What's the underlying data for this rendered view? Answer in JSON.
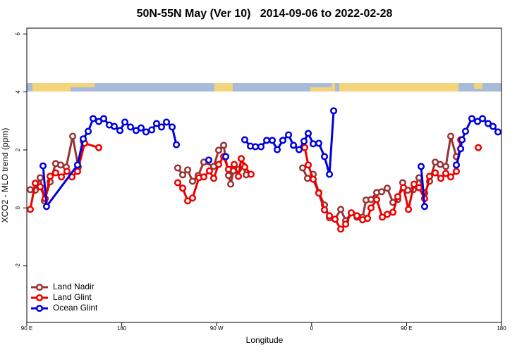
{
  "chart_data": {
    "type": "line",
    "title": "50N-55N May (Ver 10)   2014-09-06 to 2022-02-28",
    "x_label": "Longitude",
    "y_label": "XCO2 - MLO trend (ppm)",
    "xlim": [
      90,
      540
    ],
    "ylim": [
      -3.95,
      6.2
    ],
    "xticks": [
      {
        "value": 90,
        "label": "90 E"
      },
      180,
      {
        "value": 270,
        "label": "90 W"
      },
      {
        "value": 360,
        "label": "0"
      },
      {
        "value": 450,
        "label": "90 E"
      },
      {
        "value": 540,
        "label": "180"
      }
    ],
    "yticks": [
      -2,
      0,
      2,
      4,
      6
    ],
    "legend": "bottom-left",
    "series": [
      {
        "name": "Land Nadir",
        "color": "#993333",
        "x": [
          93.3,
          98.0,
          102.7,
          106.7,
          112.1,
          117.4,
          122.1,
          127.4,
          133.5,
          138.8,
          143.5,
          null,
          233.1,
          237.8,
          242.5,
          247.1,
          252.5,
          257.8,
          267.2,
          271.9,
          276.6,
          281.2,
          283.3,
          285.9,
          290.6,
          294.6,
          298.0,
          null,
          351.5,
          356.1,
          361.5,
          366.8,
          372.2,
          376.9,
          382.2,
          387.6,
          392.3,
          397.6,
          403.0,
          408.3,
          411.6,
          416.3,
          421.7,
          426.4,
          431.7,
          437.1,
          441.7,
          446.4,
          451.1,
          456.4,
          461.8,
          467.1,
          471.8,
          477.2,
          481.9,
          487.2,
          491.9,
          497.2
        ],
        "values": [
          0.63,
          0.61,
          1.04,
          0.24,
          0.9,
          1.53,
          1.48,
          1.41,
          2.47,
          1.41,
          2.3,
          null,
          1.38,
          1.14,
          1.31,
          0.92,
          1.12,
          1.58,
          1.43,
          1.99,
          2.16,
          1.12,
          0.82,
          1.28,
          1.33,
          1.48,
          1.14,
          null,
          1.38,
          1.02,
          1.16,
          0.53,
          0.1,
          -0.34,
          -0.39,
          -0.05,
          -0.44,
          -0.17,
          -0.32,
          -0.32,
          0.27,
          0.29,
          0.53,
          0.56,
          0.68,
          0.19,
          0.29,
          0.87,
          0.61,
          0.63,
          1.04,
          0.51,
          0.92,
          1.58,
          1.5,
          1.43,
          2.47,
          1.77
        ]
      },
      {
        "name": "Land Glint",
        "color": "#ee0000",
        "x": [
          93.3,
          98.0,
          102.7,
          107.4,
          112.1,
          117.4,
          122.8,
          128.1,
          132.8,
          138.1,
          144.8,
          158.2,
          null,
          233.1,
          237.8,
          242.5,
          247.1,
          253.2,
          257.8,
          263.2,
          267.2,
          271.9,
          276.6,
          281.2,
          286.6,
          290.6,
          293.3,
          296.6,
          302.6,
          null,
          353.5,
          356.8,
          361.5,
          366.8,
          372.2,
          376.9,
          382.2,
          387.6,
          392.3,
          397.6,
          403.0,
          408.3,
          413.0,
          416.3,
          421.7,
          427.0,
          431.7,
          437.1,
          441.7,
          447.1,
          451.8,
          457.1,
          461.8,
          467.1,
          471.8,
          477.2,
          482.5,
          487.2,
          491.9,
          497.2,
          501.3,
          null,
          518.0
        ],
        "values": [
          -0.05,
          0.85,
          0.73,
          0.32,
          1.09,
          1.21,
          1.07,
          1.26,
          1.07,
          1.26,
          2.23,
          2.08,
          null,
          0.87,
          0.68,
          0.24,
          0.34,
          1.04,
          1.07,
          1.28,
          1.02,
          1.5,
          1.77,
          1.33,
          1.5,
          1.09,
          1.7,
          1.41,
          1.16,
          null,
          2.08,
          1.48,
          0.99,
          0.51,
          -0.07,
          -0.27,
          -0.39,
          -0.73,
          -0.56,
          -0.17,
          -0.27,
          -0.41,
          -0.36,
          0.0,
          0.29,
          -0.32,
          -0.22,
          -0.15,
          0.39,
          0.7,
          -0.05,
          0.82,
          0.7,
          0.32,
          1.09,
          1.21,
          1.02,
          1.19,
          1.07,
          1.26,
          2.35,
          null,
          2.08
        ]
      },
      {
        "name": "Ocean Glint",
        "color": "#0000dd",
        "x": [
          105.4,
          108.7,
          138.1,
          143.5,
          148.2,
          152.9,
          158.2,
          162.9,
          168.2,
          172.9,
          178.3,
          183.0,
          188.3,
          193.6,
          198.3,
          203.0,
          208.4,
          213.0,
          217.7,
          222.4,
          227.8,
          231.8,
          null,
          262.5,
          null,
          278.6,
          null,
          296.6,
          302.0,
          306.7,
          312.0,
          317.4,
          322.7,
          327.4,
          332.7,
          338.1,
          342.8,
          348.1,
          352.8,
          356.8,
          361.5,
          366.8,
          372.2,
          376.9,
          380.9,
          null,
          463.8,
          467.1,
          null,
          497.2,
          501.3,
          502.6,
          505.9,
          511.9,
          517.3,
          522.0,
          527.3,
          532.0,
          536.7
        ],
        "values": [
          1.45,
          0.05,
          1.48,
          2.38,
          2.64,
          3.08,
          2.98,
          3.08,
          2.86,
          2.81,
          2.67,
          2.96,
          2.79,
          2.67,
          2.76,
          2.62,
          2.69,
          2.91,
          2.79,
          2.96,
          2.79,
          2.18,
          null,
          1.65,
          null,
          1.77,
          null,
          2.35,
          2.13,
          2.11,
          2.11,
          2.33,
          2.33,
          2.01,
          2.33,
          2.52,
          2.16,
          2.01,
          2.3,
          2.57,
          2.21,
          2.23,
          1.77,
          1.16,
          3.35,
          null,
          1.43,
          0.05,
          null,
          1.48,
          2.04,
          2.35,
          2.64,
          3.08,
          2.98,
          3.08,
          2.91,
          2.81,
          2.62
        ]
      }
    ]
  }
}
